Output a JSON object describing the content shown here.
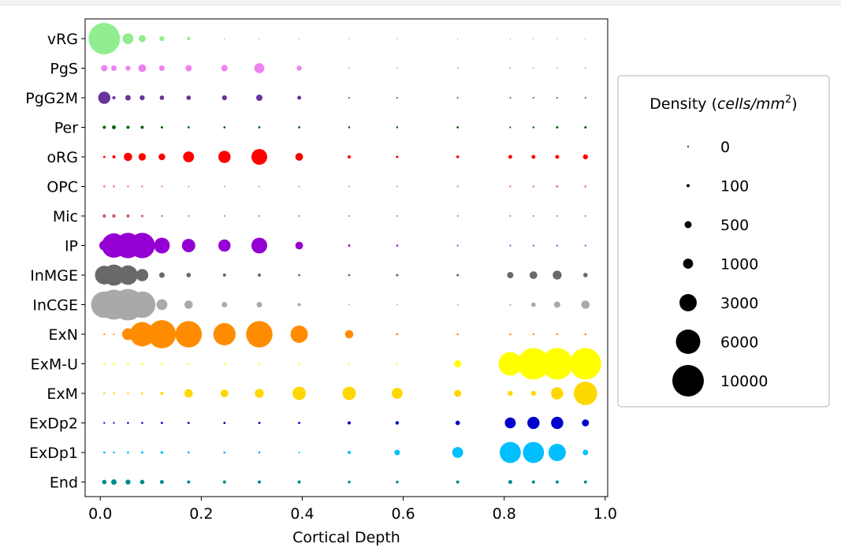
{
  "chart_data": {
    "type": "scatter",
    "xlabel": "Cortical Depth",
    "xlim": [
      -0.03,
      1.005
    ],
    "xticks": [
      "0.0",
      "0.2",
      "0.4",
      "0.6",
      "0.8",
      "1.0"
    ],
    "xtick_values": [
      0.0,
      0.2,
      0.4,
      0.6,
      0.8,
      1.0
    ],
    "grid": false,
    "x": [
      0.008,
      0.027,
      0.055,
      0.083,
      0.122,
      0.175,
      0.246,
      0.315,
      0.394,
      0.493,
      0.588,
      0.708,
      0.812,
      0.858,
      0.905,
      0.961
    ],
    "series": [
      {
        "name": "vRG",
        "color": "#90EE90",
        "values": [
          10000,
          700,
          1200,
          500,
          250,
          120,
          20,
          20,
          10,
          10,
          20,
          20,
          20,
          20,
          20,
          20
        ]
      },
      {
        "name": "PgS",
        "color": "#EE82EE",
        "values": [
          400,
          300,
          250,
          600,
          300,
          400,
          400,
          1000,
          250,
          10,
          10,
          10,
          10,
          10,
          10,
          10
        ]
      },
      {
        "name": "PgG2M",
        "color": "#663399",
        "values": [
          1500,
          100,
          300,
          250,
          200,
          200,
          250,
          400,
          150,
          10,
          10,
          10,
          10,
          10,
          10,
          20
        ]
      },
      {
        "name": "Per",
        "color": "#006400",
        "values": [
          100,
          150,
          100,
          100,
          60,
          50,
          50,
          50,
          50,
          40,
          40,
          50,
          30,
          40,
          60,
          60
        ]
      },
      {
        "name": "oRG",
        "color": "#FF0000",
        "values": [
          50,
          100,
          700,
          550,
          450,
          1200,
          1500,
          2500,
          600,
          100,
          60,
          80,
          150,
          150,
          150,
          250
        ]
      },
      {
        "name": "OPC",
        "color": "#F08080",
        "values": [
          50,
          50,
          40,
          40,
          30,
          20,
          20,
          20,
          20,
          10,
          20,
          30,
          40,
          40,
          60,
          50
        ]
      },
      {
        "name": "Mic",
        "color": "#CD5C5C",
        "values": [
          120,
          120,
          100,
          60,
          30,
          20,
          20,
          20,
          20,
          10,
          10,
          10,
          10,
          10,
          10,
          10
        ]
      },
      {
        "name": "IP",
        "color": "#9400D3",
        "values": [
          1000,
          6000,
          6500,
          6500,
          2500,
          1800,
          1500,
          2500,
          600,
          50,
          40,
          20,
          20,
          20,
          20,
          20
        ]
      },
      {
        "name": "InMGE",
        "color": "#696969",
        "values": [
          3500,
          4500,
          3800,
          1500,
          300,
          200,
          100,
          100,
          50,
          50,
          60,
          60,
          400,
          600,
          800,
          200
        ]
      },
      {
        "name": "InCGE",
        "color": "#A9A9A9",
        "values": [
          7000,
          9000,
          10000,
          7000,
          1200,
          700,
          300,
          300,
          100,
          10,
          10,
          10,
          30,
          200,
          400,
          700
        ]
      },
      {
        "name": "ExN",
        "color": "#FF8C00",
        "values": [
          30,
          30,
          1400,
          6000,
          8000,
          7000,
          5000,
          7000,
          3000,
          700,
          50,
          40,
          40,
          40,
          40,
          40
        ]
      },
      {
        "name": "ExM-U",
        "color": "#FFFF00",
        "values": [
          40,
          40,
          40,
          40,
          40,
          40,
          40,
          40,
          40,
          30,
          30,
          500,
          5500,
          10000,
          10000,
          10000
        ]
      },
      {
        "name": "ExM",
        "color": "#FFD700",
        "values": [
          40,
          40,
          40,
          50,
          100,
          700,
          600,
          800,
          1800,
          1800,
          1200,
          500,
          250,
          250,
          1500,
          5500
        ]
      },
      {
        "name": "ExDp2",
        "color": "#0000CD",
        "values": [
          30,
          30,
          40,
          40,
          50,
          50,
          50,
          50,
          50,
          100,
          120,
          200,
          1200,
          1500,
          1500,
          500
        ]
      },
      {
        "name": "ExDp1",
        "color": "#00BFFF",
        "values": [
          50,
          40,
          50,
          60,
          80,
          50,
          50,
          50,
          30,
          100,
          300,
          1200,
          4500,
          4500,
          3000,
          300
        ]
      },
      {
        "name": "End",
        "color": "#008B8B",
        "values": [
          200,
          300,
          250,
          200,
          150,
          100,
          100,
          100,
          100,
          80,
          80,
          100,
          150,
          100,
          100,
          100
        ]
      }
    ],
    "legend": {
      "title_text": "Density (",
      "title_italic": "cells/mm",
      "title_sup": "2",
      "title_close": ")",
      "placement": "right",
      "entries": [
        {
          "label": "0",
          "value": 0
        },
        {
          "label": "100",
          "value": 100
        },
        {
          "label": "500",
          "value": 500
        },
        {
          "label": "1000",
          "value": 1000
        },
        {
          "label": "3000",
          "value": 3000
        },
        {
          "label": "6000",
          "value": 6000
        },
        {
          "label": "10000",
          "value": 10000
        }
      ]
    }
  }
}
